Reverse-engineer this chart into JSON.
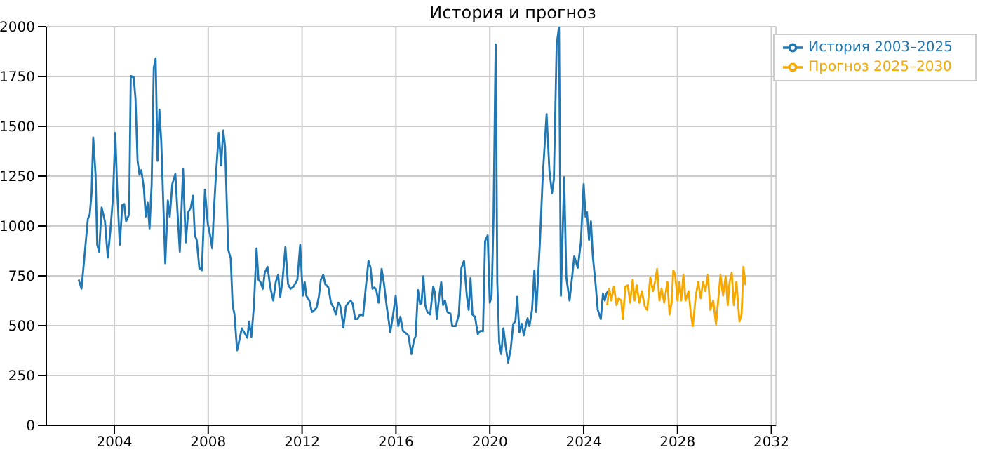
{
  "chart_data": {
    "type": "line",
    "title": "История и прогноз",
    "xlim": [
      2001.1,
      2032.2
    ],
    "xticks": [
      2004,
      2008,
      2012,
      2016,
      2020,
      2024,
      2028,
      2032
    ],
    "ylim": [
      0,
      2000
    ],
    "yticks": [
      0,
      250,
      500,
      750,
      1000,
      1250,
      1500,
      1750,
      2000
    ],
    "grid": true,
    "legend": "top right",
    "marker": "none",
    "line_style": "solid",
    "series": [
      {
        "name": "История 2003–2025",
        "color": "#1f77b4",
        "x": [
          2002.48,
          2002.6,
          2002.7,
          2002.87,
          2002.95,
          2003.03,
          2003.1,
          2003.2,
          2003.27,
          2003.35,
          2003.46,
          2003.6,
          2003.72,
          2003.83,
          2003.94,
          2004.04,
          2004.12,
          2004.23,
          2004.34,
          2004.42,
          2004.5,
          2004.63,
          2004.7,
          2004.82,
          2004.9,
          2004.99,
          2005.07,
          2005.15,
          2005.26,
          2005.34,
          2005.42,
          2005.5,
          2005.59,
          2005.68,
          2005.76,
          2005.84,
          2005.92,
          2006.0,
          2006.17,
          2006.28,
          2006.36,
          2006.47,
          2006.6,
          2006.68,
          2006.79,
          2006.93,
          2007.04,
          2007.15,
          2007.26,
          2007.35,
          2007.43,
          2007.51,
          2007.62,
          2007.73,
          2007.86,
          2007.98,
          2008.09,
          2008.17,
          2008.25,
          2008.33,
          2008.45,
          2008.55,
          2008.64,
          2008.72,
          2008.85,
          2008.96,
          2009.04,
          2009.12,
          2009.23,
          2009.3,
          2009.43,
          2009.55,
          2009.67,
          2009.74,
          2009.84,
          2009.95,
          2010.06,
          2010.14,
          2010.22,
          2010.33,
          2010.41,
          2010.53,
          2010.64,
          2010.77,
          2010.88,
          2010.98,
          2011.07,
          2011.16,
          2011.29,
          2011.4,
          2011.51,
          2011.64,
          2011.8,
          2011.92,
          2012.03,
          2012.11,
          2012.18,
          2012.31,
          2012.42,
          2012.53,
          2012.62,
          2012.72,
          2012.8,
          2012.9,
          2012.99,
          2013.12,
          2013.23,
          2013.34,
          2013.44,
          2013.54,
          2013.62,
          2013.7,
          2013.76,
          2013.87,
          2013.98,
          2014.07,
          2014.16,
          2014.26,
          2014.36,
          2014.47,
          2014.6,
          2014.71,
          2014.83,
          2014.92,
          2015.0,
          2015.09,
          2015.17,
          2015.26,
          2015.39,
          2015.48,
          2015.6,
          2015.76,
          2015.88,
          2015.99,
          2016.1,
          2016.19,
          2016.3,
          2016.42,
          2016.53,
          2016.66,
          2016.77,
          2016.84,
          2016.94,
          2017.03,
          2017.09,
          2017.17,
          2017.25,
          2017.34,
          2017.46,
          2017.59,
          2017.67,
          2017.74,
          2017.85,
          2017.93,
          2018.01,
          2018.09,
          2018.2,
          2018.32,
          2018.4,
          2018.55,
          2018.68,
          2018.79,
          2018.9,
          2019.02,
          2019.1,
          2019.18,
          2019.26,
          2019.37,
          2019.49,
          2019.6,
          2019.71,
          2019.8,
          2019.91,
          2020.0,
          2020.08,
          2020.16,
          2020.25,
          2020.32,
          2020.4,
          2020.49,
          2020.58,
          2020.68,
          2020.78,
          2020.89,
          2021.0,
          2021.09,
          2021.17,
          2021.26,
          2021.36,
          2021.45,
          2021.55,
          2021.61,
          2021.69,
          2021.8,
          2021.9,
          2021.98,
          2022.14,
          2022.26,
          2022.42,
          2022.54,
          2022.65,
          2022.73,
          2022.85,
          2022.95,
          2023.03,
          2023.17,
          2023.26,
          2023.4,
          2023.6,
          2023.75,
          2023.88,
          2024.0,
          2024.08,
          2024.14,
          2024.23,
          2024.31,
          2024.39,
          2024.5,
          2024.6,
          2024.73,
          2024.82,
          2024.9,
          2024.97,
          2025.07
        ],
        "values": [
          731,
          685,
          813,
          1035,
          1058,
          1164,
          1444,
          1257,
          906,
          871,
          1093,
          1023,
          841,
          977,
          1140,
          1467,
          1187,
          906,
          1105,
          1110,
          1023,
          1058,
          1752,
          1748,
          1643,
          1327,
          1257,
          1280,
          1187,
          1047,
          1117,
          988,
          1210,
          1794,
          1841,
          1327,
          1584,
          1421,
          813,
          1128,
          1047,
          1210,
          1262,
          1093,
          871,
          1285,
          918,
          1070,
          1093,
          1152,
          953,
          930,
          790,
          778,
          1182,
          1012,
          949,
          888,
          1093,
          1257,
          1467,
          1304,
          1479,
          1397,
          883,
          836,
          603,
          556,
          376,
          411,
          486,
          463,
          439,
          521,
          444,
          603,
          888,
          731,
          720,
          685,
          766,
          795,
          696,
          626,
          720,
          755,
          645,
          720,
          895,
          708,
          685,
          696,
          731,
          906,
          650,
          720,
          650,
          626,
          568,
          579,
          591,
          650,
          731,
          755,
          708,
          692,
          615,
          591,
          556,
          615,
          603,
          545,
          491,
          598,
          615,
          626,
          608,
          533,
          533,
          556,
          551,
          685,
          825,
          790,
          685,
          692,
          673,
          615,
          785,
          720,
          603,
          467,
          556,
          650,
          498,
          545,
          474,
          463,
          451,
          357,
          428,
          449,
          678,
          608,
          612,
          748,
          603,
          568,
          556,
          696,
          661,
          533,
          650,
          720,
          603,
          626,
          568,
          561,
          498,
          498,
          556,
          790,
          825,
          650,
          579,
          738,
          556,
          545,
          458,
          474,
          472,
          925,
          953,
          615,
          650,
          1047,
          1911,
          720,
          416,
          357,
          486,
          393,
          315,
          381,
          509,
          521,
          645,
          467,
          509,
          451,
          509,
          537,
          498,
          579,
          778,
          568,
          930,
          1257,
          1561,
          1280,
          1164,
          1234,
          1911,
          2000,
          650,
          1245,
          743,
          626,
          848,
          790,
          918,
          1210,
          1047,
          1070,
          930,
          1023,
          848,
          720,
          579,
          533,
          661,
          626,
          661,
          678
        ]
      },
      {
        "name": "Прогноз 2025–2030",
        "color": "#f5a800",
        "x": [
          2025.0,
          2025.09,
          2025.18,
          2025.29,
          2025.4,
          2025.49,
          2025.6,
          2025.67,
          2025.78,
          2025.88,
          2025.98,
          2026.09,
          2026.17,
          2026.26,
          2026.37,
          2026.48,
          2026.6,
          2026.71,
          2026.84,
          2026.95,
          2027.04,
          2027.13,
          2027.23,
          2027.32,
          2027.43,
          2027.57,
          2027.66,
          2027.75,
          2027.82,
          2027.9,
          2028.0,
          2028.08,
          2028.16,
          2028.25,
          2028.34,
          2028.47,
          2028.56,
          2028.65,
          2028.78,
          2028.88,
          2028.99,
          2029.09,
          2029.19,
          2029.29,
          2029.4,
          2029.52,
          2029.64,
          2029.75,
          2029.83,
          2029.94,
          2030.05,
          2030.14,
          2030.22,
          2030.31,
          2030.4,
          2030.51,
          2030.64,
          2030.73,
          2030.81,
          2030.9
        ],
        "values": [
          603,
          685,
          626,
          696,
          603,
          638,
          626,
          533,
          696,
          703,
          615,
          731,
          626,
          703,
          615,
          673,
          598,
          579,
          743,
          673,
          720,
          785,
          626,
          685,
          615,
          720,
          556,
          615,
          778,
          755,
          626,
          720,
          626,
          755,
          626,
          673,
          568,
          498,
          650,
          720,
          638,
          720,
          673,
          755,
          579,
          626,
          505,
          650,
          755,
          650,
          748,
          603,
          720,
          766,
          603,
          720,
          521,
          556,
          795,
          703
        ]
      }
    ]
  }
}
